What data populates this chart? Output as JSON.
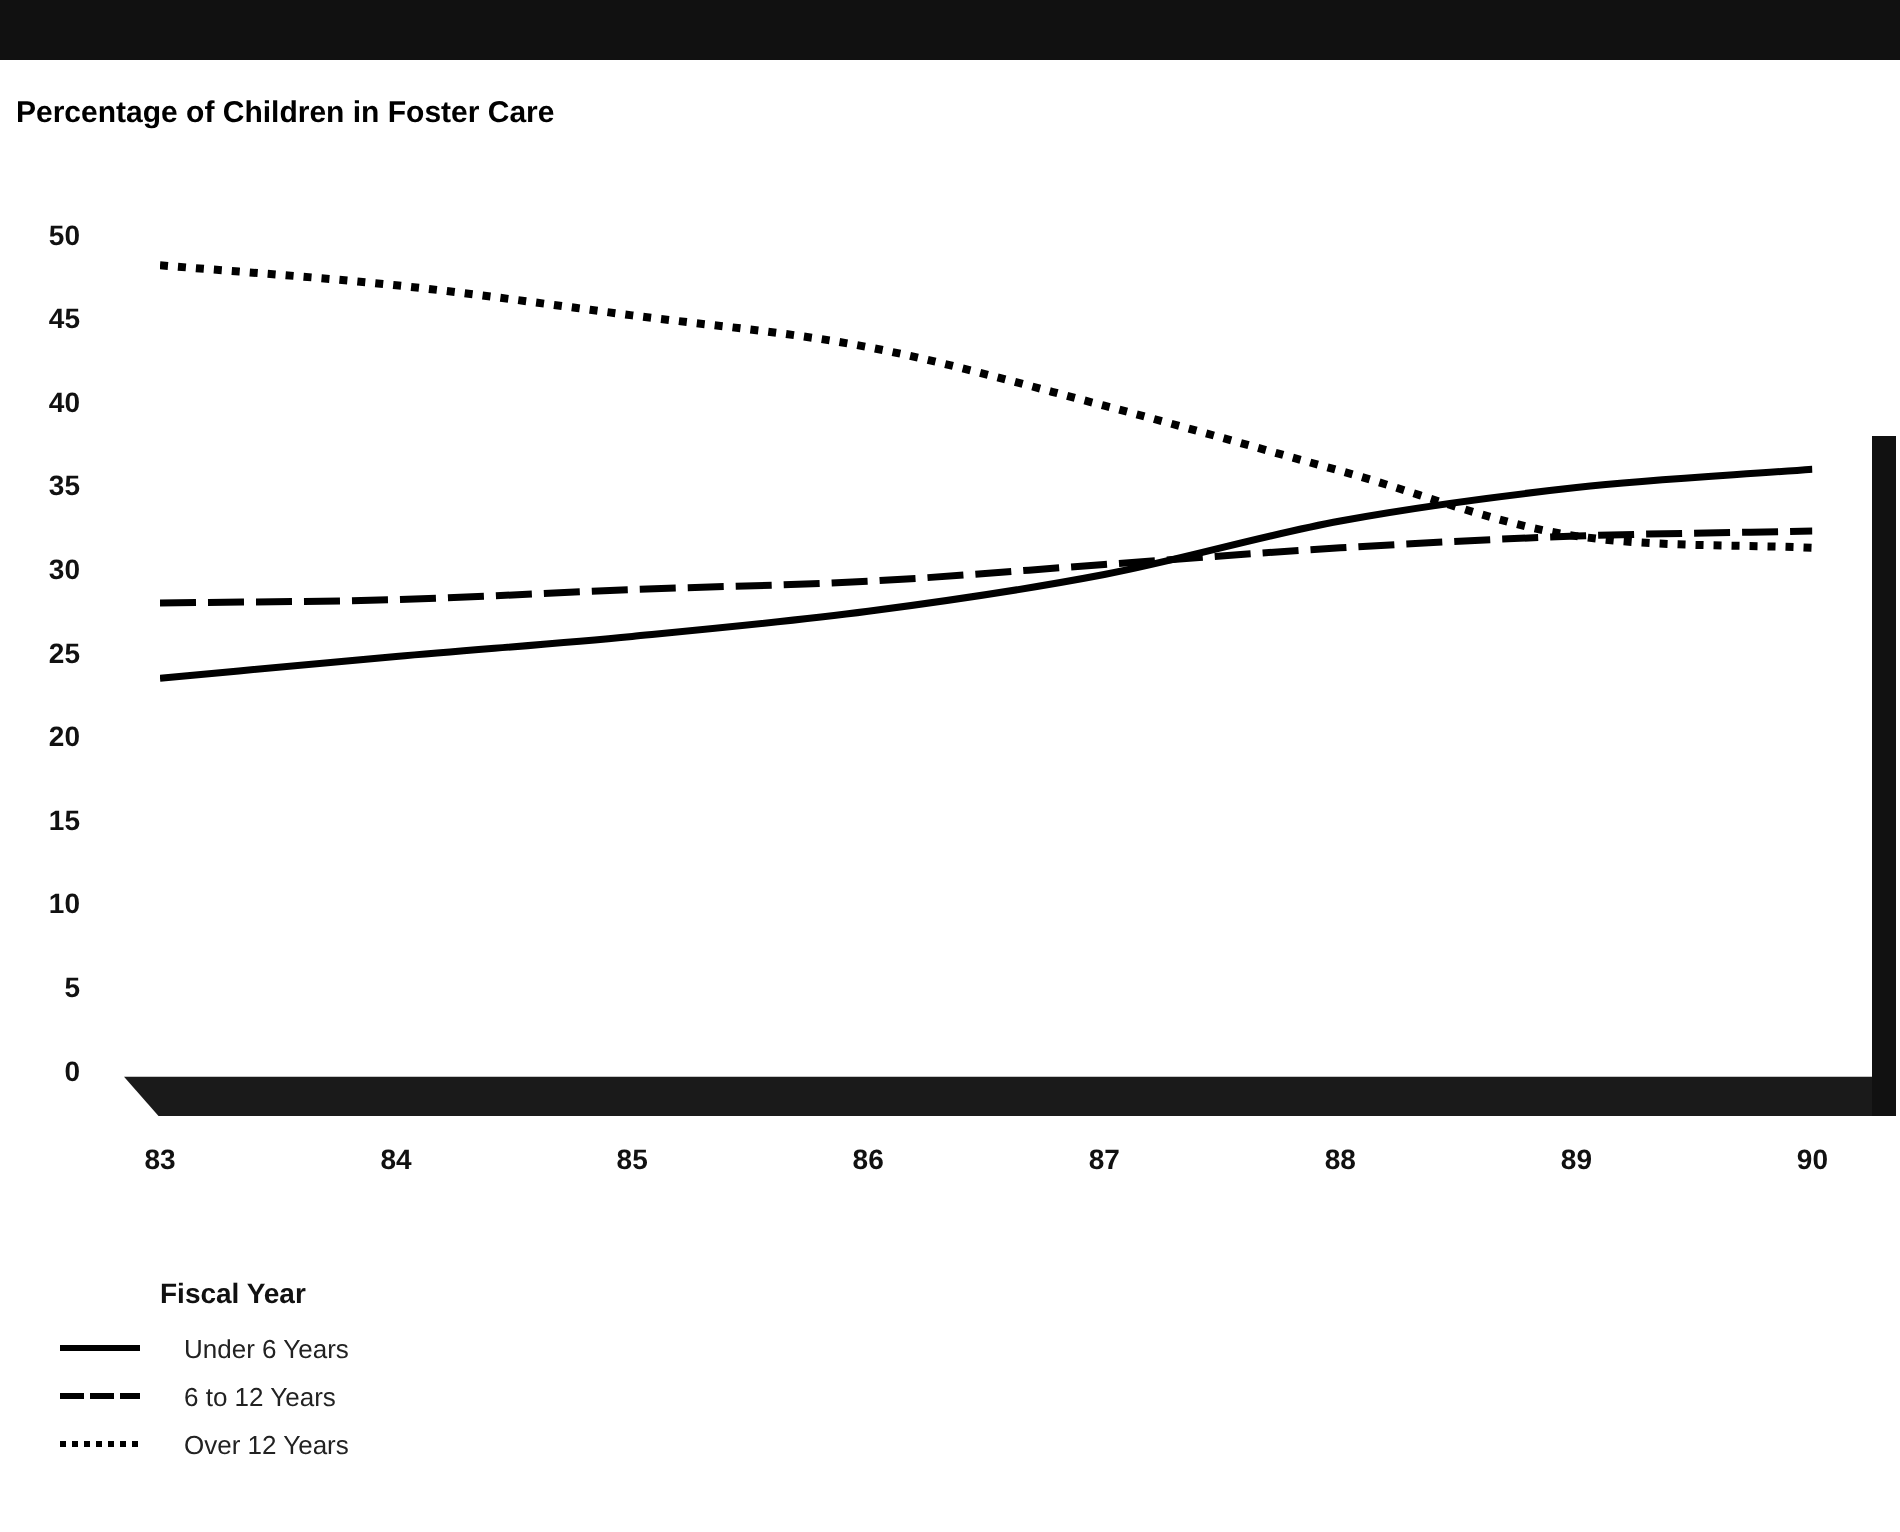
{
  "chart_data": {
    "type": "line",
    "ylabel": "Percentage of Children in Foster Care",
    "xlabel": "Fiscal Year",
    "x": [
      83,
      84,
      85,
      86,
      87,
      88,
      89,
      90
    ],
    "xlim": [
      83,
      90
    ],
    "xticks": [
      83,
      84,
      85,
      86,
      87,
      88,
      89,
      90
    ],
    "ylim": [
      0,
      50
    ],
    "yticks": [
      0,
      5,
      10,
      15,
      20,
      25,
      30,
      35,
      40,
      45,
      50
    ],
    "grid": false,
    "legend": "bottom left",
    "marker": "none",
    "series": [
      {
        "name": "Under 6 Years",
        "color": "#000000",
        "line_style": "solid",
        "values": [
          23.6,
          24.9,
          26.1,
          27.6,
          29.8,
          33.0,
          35.0,
          36.1
        ]
      },
      {
        "name": "6 to 12 Years",
        "color": "#000000",
        "line_style": "dashed",
        "values": [
          28.1,
          28.3,
          28.9,
          29.4,
          30.4,
          31.4,
          32.1,
          32.4
        ]
      },
      {
        "name": "Over 12 Years",
        "color": "#000000",
        "line_style": "dotted",
        "values": [
          48.3,
          47.1,
          45.3,
          43.4,
          39.9,
          36.0,
          32.1,
          31.4
        ]
      }
    ]
  }
}
